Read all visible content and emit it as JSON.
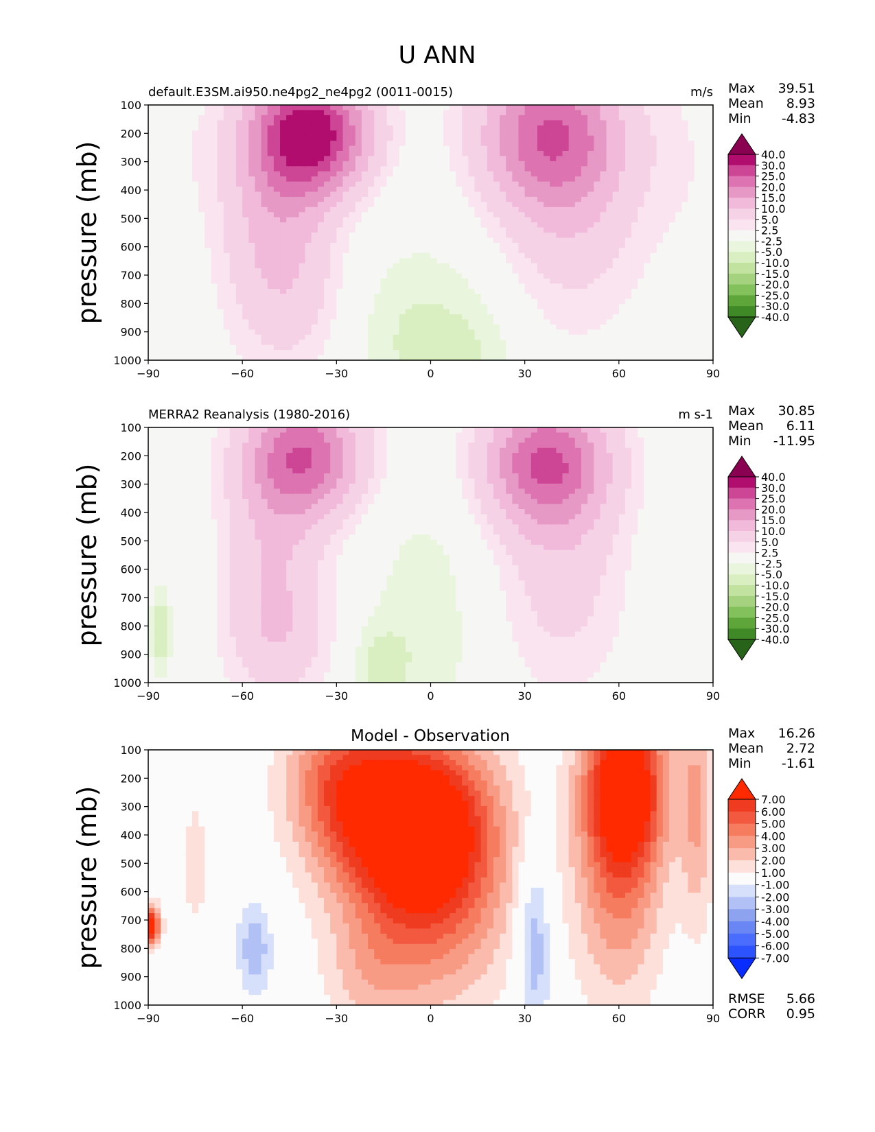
{
  "figure_title": "U ANN",
  "colors": {
    "fill_cmap": [
      "#276419",
      "#3f8a26",
      "#5ea63a",
      "#83c15d",
      "#a4d27f",
      "#c2e39f",
      "#d9efc1",
      "#eaf5dd",
      "#f6f6f4",
      "#f9e4ef",
      "#f6d2e6",
      "#f1b9da",
      "#e799c6",
      "#dd73b0",
      "#cd4595",
      "#b10d6e",
      "#8b0152"
    ],
    "diff_cmap": [
      "#0a2dff",
      "#2d53ff",
      "#4a6cff",
      "#6a86f5",
      "#8ea3ef",
      "#b2c1f5",
      "#d7e0fb",
      "#fbfbfb",
      "#fde0d9",
      "#fbbbac",
      "#f89b85",
      "#f67c60",
      "#f2593e",
      "#ef3b1f",
      "#ff2a00"
    ]
  },
  "chart_data": [
    {
      "type": "contour",
      "panel": "top",
      "left_title": "default.E3SM.ai950.ne4pg2_ne4pg2 (0011-0015)",
      "right_title": "m/s",
      "ylabel": "pressure (mb)",
      "x_ticks": [
        "−90",
        "−60",
        "−30",
        "0",
        "30",
        "60",
        "90"
      ],
      "y_ticks": [
        "100",
        "200",
        "300",
        "400",
        "500",
        "600",
        "700",
        "800",
        "900",
        "1000"
      ],
      "xlim": [
        -90,
        90
      ],
      "ylim": [
        1000,
        100
      ],
      "stats": [
        {
          "label": "Max",
          "value": "39.51"
        },
        {
          "label": "Mean",
          "value": "8.93"
        },
        {
          "label": "Min",
          "value": "-4.83"
        }
      ],
      "colorbar_labels": [
        "40.0",
        "30.0",
        "25.0",
        "20.0",
        "15.0",
        "10.0",
        "5.0",
        "2.5",
        "-2.5",
        "-5.0",
        "-10.0",
        "-15.0",
        "-20.0",
        "-25.0",
        "-30.0",
        "-40.0"
      ],
      "contour_levels": [
        -40,
        -30,
        -25,
        -20,
        -15,
        -10,
        -5,
        -2.5,
        2.5,
        5,
        10,
        15,
        20,
        25,
        30,
        40
      ],
      "cmap": "fill_cmap",
      "features": [
        {
          "lat": -38,
          "p": 200,
          "amp": 33,
          "sx": 13,
          "sy": 150
        },
        {
          "lat": -50,
          "p": 450,
          "amp": 9,
          "sx": 12,
          "sy": 260
        },
        {
          "lat": -45,
          "p": 750,
          "amp": 6,
          "sx": 13,
          "sy": 240
        },
        {
          "lat": 38,
          "p": 200,
          "amp": 23,
          "sx": 16,
          "sy": 190
        },
        {
          "lat": 45,
          "p": 520,
          "amp": 7,
          "sx": 16,
          "sy": 280
        },
        {
          "lat": 80,
          "p": 300,
          "amp": 2,
          "sx": 10,
          "sy": 250
        },
        {
          "lat": -80,
          "p": 250,
          "amp": 1.5,
          "sx": 10,
          "sy": 200
        },
        {
          "lat": -5,
          "p": 950,
          "amp": -4.5,
          "sx": 14,
          "sy": 200
        },
        {
          "lat": 15,
          "p": 980,
          "amp": -3,
          "sx": 10,
          "sy": 150
        },
        {
          "lat": 0,
          "p": 700,
          "amp": -1.5,
          "sx": 25,
          "sy": 300
        }
      ]
    },
    {
      "type": "contour",
      "panel": "middle",
      "left_title": "MERRA2 Reanalysis (1980-2016)",
      "right_title": "m s-1",
      "ylabel": "pressure (mb)",
      "x_ticks": [
        "−90",
        "−60",
        "−30",
        "0",
        "30",
        "60",
        "90"
      ],
      "y_ticks": [
        "100",
        "200",
        "300",
        "400",
        "500",
        "600",
        "700",
        "800",
        "900",
        "1000"
      ],
      "xlim": [
        -90,
        90
      ],
      "ylim": [
        1000,
        100
      ],
      "stats": [
        {
          "label": "Max",
          "value": "30.85"
        },
        {
          "label": "Mean",
          "value": "6.11"
        },
        {
          "label": "Min",
          "value": "-11.95"
        }
      ],
      "colorbar_labels": [
        "40.0",
        "30.0",
        "25.0",
        "20.0",
        "15.0",
        "10.0",
        "5.0",
        "2.5",
        "-2.5",
        "-5.0",
        "-10.0",
        "-15.0",
        "-20.0",
        "-25.0",
        "-30.0",
        "-40.0"
      ],
      "contour_levels": [
        -40,
        -30,
        -25,
        -20,
        -15,
        -10,
        -5,
        -2.5,
        2.5,
        5,
        10,
        15,
        20,
        25,
        30,
        40
      ],
      "cmap": "fill_cmap",
      "features": [
        {
          "lat": -40,
          "p": 200,
          "amp": 23,
          "sx": 13,
          "sy": 150
        },
        {
          "lat": -50,
          "p": 550,
          "amp": 9,
          "sx": 11,
          "sy": 290
        },
        {
          "lat": -48,
          "p": 850,
          "amp": 5,
          "sx": 12,
          "sy": 150
        },
        {
          "lat": 37,
          "p": 220,
          "amp": 24,
          "sx": 14,
          "sy": 160
        },
        {
          "lat": 42,
          "p": 600,
          "amp": 7,
          "sx": 14,
          "sy": 300
        },
        {
          "lat": -2,
          "p": 800,
          "amp": -4.5,
          "sx": 12,
          "sy": 330
        },
        {
          "lat": -17,
          "p": 960,
          "amp": -5,
          "sx": 6,
          "sy": 120
        },
        {
          "lat": -86,
          "p": 820,
          "amp": -7,
          "sx": 2.5,
          "sy": 120
        }
      ]
    },
    {
      "type": "contour",
      "panel": "bottom",
      "center_title": "Model - Observation",
      "ylabel": "pressure (mb)",
      "x_ticks": [
        "−90",
        "−60",
        "−30",
        "0",
        "30",
        "60",
        "90"
      ],
      "y_ticks": [
        "100",
        "200",
        "300",
        "400",
        "500",
        "600",
        "700",
        "800",
        "900",
        "1000"
      ],
      "xlim": [
        -90,
        90
      ],
      "ylim": [
        1000,
        100
      ],
      "stats": [
        {
          "label": "Max",
          "value": "16.26"
        },
        {
          "label": "Mean",
          "value": "2.72"
        },
        {
          "label": "Min",
          "value": "-1.61"
        }
      ],
      "colorbar_labels": [
        "7.00",
        "6.00",
        "5.00",
        "4.00",
        "3.00",
        "2.00",
        "1.00",
        "-1.00",
        "-2.00",
        "-3.00",
        "-4.00",
        "-5.00",
        "-6.00",
        "-7.00"
      ],
      "contour_levels": [
        -7,
        -6,
        -5,
        -4,
        -3,
        -2,
        -1,
        1,
        2,
        3,
        4,
        5,
        6,
        7
      ],
      "cmap": "diff_cmap",
      "footer_stats": [
        {
          "label": "RMSE",
          "value": "5.66"
        },
        {
          "label": "CORR",
          "value": "0.95"
        }
      ],
      "features": [
        {
          "lat": -5,
          "p": 350,
          "amp": 9,
          "sx": 17,
          "sy": 220
        },
        {
          "lat": -30,
          "p": 200,
          "amp": 4,
          "sx": 12,
          "sy": 200
        },
        {
          "lat": 0,
          "p": 650,
          "amp": 4,
          "sx": 18,
          "sy": 280
        },
        {
          "lat": 62,
          "p": 220,
          "amp": 8,
          "sx": 9,
          "sy": 200
        },
        {
          "lat": 60,
          "p": 550,
          "amp": 4,
          "sx": 10,
          "sy": 320
        },
        {
          "lat": 85,
          "p": 300,
          "amp": 3,
          "sx": 4,
          "sy": 300
        },
        {
          "lat": 33,
          "p": 780,
          "amp": -3.2,
          "sx": 4,
          "sy": 240
        },
        {
          "lat": -56,
          "p": 800,
          "amp": -2.8,
          "sx": 4,
          "sy": 120
        },
        {
          "lat": -89,
          "p": 720,
          "amp": 8,
          "sx": 2,
          "sy": 50
        },
        {
          "lat": -75,
          "p": 500,
          "amp": 1.3,
          "sx": 4,
          "sy": 250
        },
        {
          "lat": -20,
          "p": 900,
          "amp": 1.5,
          "sx": 10,
          "sy": 150
        }
      ]
    }
  ]
}
